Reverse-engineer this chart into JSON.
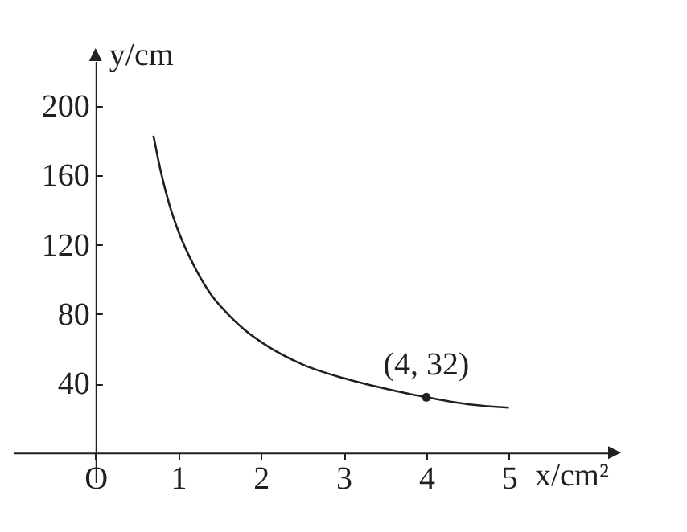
{
  "chart_data": {
    "type": "line",
    "xlabel": "x/cm²",
    "ylabel": "y/cm",
    "xlim": [
      -1,
      6.2
    ],
    "ylim": [
      -17,
      226
    ],
    "xticks": [
      {
        "value": 0,
        "label": "O"
      },
      1,
      2,
      3,
      4,
      5
    ],
    "yticks": [
      40,
      80,
      120,
      160,
      200
    ],
    "series": [
      {
        "color": "#231f20",
        "x": [
          0.7,
          0.8,
          0.9,
          1,
          1.2,
          1.4,
          1.6,
          1.8,
          2,
          2.5,
          3,
          3.5,
          4,
          4.5,
          5
        ],
        "values": [
          183,
          160,
          142,
          128,
          107,
          91,
          80,
          71,
          64,
          51,
          43,
          37,
          32,
          28,
          26
        ]
      },
      {
        "type": "scatter",
        "color": "#231f20",
        "marker": "circle",
        "x": [
          4
        ],
        "values": [
          32
        ]
      }
    ],
    "annotations": [
      {
        "text": "(4, 32)",
        "x": 4,
        "y": 32
      }
    ]
  }
}
